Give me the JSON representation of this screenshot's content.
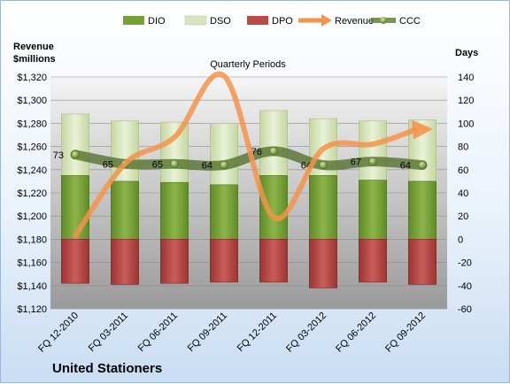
{
  "chart_data": {
    "type": "bar",
    "title": "Quarterly Periods",
    "company": "United Stationers",
    "left_axis_label_line1": "Revenue",
    "left_axis_label_line2": "$millions",
    "right_axis_label": "Days",
    "categories": [
      "FQ 12-2010",
      "FQ 03-2011",
      "FQ 06-2011",
      "FQ 09-2011",
      "FQ 12-2011",
      "FQ 03-2012",
      "FQ 06-2012",
      "FQ 09-2012"
    ],
    "left_ylim": [
      1120,
      1320
    ],
    "left_ticks": [
      1120,
      1140,
      1160,
      1180,
      1200,
      1220,
      1240,
      1260,
      1280,
      1300,
      1320
    ],
    "left_tick_labels": [
      "$1,120",
      "$1,140",
      "$1,160",
      "$1,180",
      "$1,200",
      "$1,220",
      "$1,240",
      "$1,260",
      "$1,280",
      "$1,300",
      "$1,320"
    ],
    "right_ylim": [
      -60,
      140
    ],
    "right_ticks": [
      -60,
      -40,
      -20,
      0,
      20,
      40,
      60,
      80,
      100,
      120,
      140
    ],
    "legend_position": "top",
    "series": [
      {
        "name": "DIO",
        "axis": "right",
        "kind": "bar",
        "color": "#77a136",
        "values": [
          55,
          50,
          49,
          47,
          55,
          55,
          51,
          50
        ]
      },
      {
        "name": "DSO",
        "axis": "right",
        "kind": "bar-stacked",
        "color": "#d7e4bd",
        "values": [
          108,
          102,
          101,
          100,
          111,
          104,
          102,
          103
        ]
      },
      {
        "name": "DPO",
        "axis": "right",
        "kind": "bar-negative",
        "color": "#b94a48",
        "values": [
          -38,
          -39,
          -38,
          -37,
          -37,
          -42,
          -37,
          -39
        ]
      },
      {
        "name": "Revenue",
        "axis": "left",
        "kind": "line",
        "color": "#f4934a",
        "values": [
          1183,
          1245,
          1268,
          1321,
          1199,
          1258,
          1262,
          1276
        ]
      },
      {
        "name": "CCC",
        "axis": "right",
        "kind": "line-markers",
        "color": "#5a7a2e",
        "values": [
          73,
          65,
          65,
          64,
          76,
          64,
          67,
          64
        ]
      }
    ],
    "ccc_labels": [
      "73",
      "65",
      "65",
      "64",
      "76",
      "64",
      "67",
      "64"
    ]
  }
}
